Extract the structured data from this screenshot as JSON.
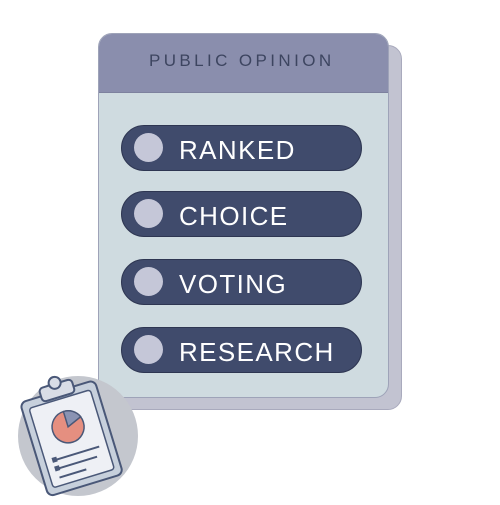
{
  "card": {
    "title": "PUBLIC OPINION",
    "options": [
      {
        "label": "RANKED"
      },
      {
        "label": "CHOICE"
      },
      {
        "label": "VOTING"
      },
      {
        "label": "RESEARCH"
      }
    ]
  },
  "icons": {
    "option_marker": "radio-circle-icon",
    "badge": "clipboard-pie-chart-icon"
  },
  "colors": {
    "header": "#8a8ead",
    "card_body": "#cfdbe0",
    "pill": "#404b6c",
    "pill_text": "#ffffff",
    "radio": "#c5c7d8",
    "pie_accent": "#e58f80",
    "badge_circle": "#c4c7ce"
  }
}
